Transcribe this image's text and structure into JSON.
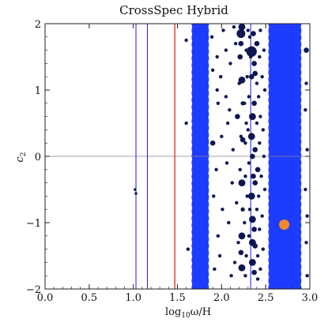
{
  "chart_data": {
    "type": "scatter",
    "title": "CrossSpec Hybrid",
    "xlabel": "log10ω/H",
    "ylabel": "c2",
    "xlim": [
      0.0,
      3.0
    ],
    "ylim": [
      -2,
      2
    ],
    "x_ticks": [
      "0.0",
      "0.5",
      "1.0",
      "1.5",
      "2.0",
      "2.5",
      "3.0"
    ],
    "y_ticks": [
      "2",
      "1",
      "0",
      "−1",
      "−2"
    ],
    "grid": false,
    "colors": {
      "band": "#1e3cff",
      "points": "#0d1650",
      "marker": "#f5892e",
      "vline_blue": "#1a1aff",
      "vline_red": "#e02a10",
      "zero_line": "#888888"
    },
    "reference_lines": {
      "horizontal_y": 0,
      "vertical_blue_x": [
        1.03,
        1.16,
        2.33
      ],
      "vertical_red_x": [
        1.47
      ]
    },
    "bands": [
      {
        "x_min": 1.66,
        "x_max": 1.88
      },
      {
        "x_min": 2.53,
        "x_max": 2.94
      }
    ],
    "highlight_point": {
      "x": 2.71,
      "y": -1.03
    },
    "points": [
      [
        1.02,
        -0.5,
        0.8
      ],
      [
        1.03,
        -0.56,
        0.8
      ],
      [
        1.6,
        1.75,
        1
      ],
      [
        1.62,
        -1.4,
        1
      ],
      [
        1.6,
        0.5,
        1
      ],
      [
        1.89,
        1.8,
        1
      ],
      [
        1.9,
        1.3,
        1
      ],
      [
        1.9,
        0.2,
        1.5
      ],
      [
        1.91,
        -0.6,
        1
      ],
      [
        1.92,
        -1.7,
        1
      ],
      [
        1.95,
        1.5,
        1
      ],
      [
        1.96,
        0.8,
        1
      ],
      [
        1.94,
        -0.2,
        1
      ],
      [
        1.96,
        -1.2,
        1
      ],
      [
        1.95,
        1.0,
        1
      ],
      [
        1.99,
        1.2,
        1
      ],
      [
        2.0,
        0.3,
        1
      ],
      [
        2.01,
        -0.8,
        1
      ],
      [
        1.98,
        -1.5,
        1
      ],
      [
        2.02,
        1.9,
        1
      ],
      [
        2.05,
        0.9,
        1
      ],
      [
        2.06,
        -0.1,
        1
      ],
      [
        2.08,
        -1.0,
        1
      ],
      [
        2.05,
        1.6,
        1
      ],
      [
        2.07,
        0.5,
        1
      ],
      [
        2.1,
        1.4,
        1
      ],
      [
        2.12,
        -0.4,
        1
      ],
      [
        2.11,
        -1.8,
        1
      ],
      [
        2.13,
        0.1,
        1
      ],
      [
        2.09,
        0.7,
        1
      ],
      [
        2.16,
        1.7,
        1
      ],
      [
        2.18,
        0.6,
        1.5
      ],
      [
        2.17,
        -0.7,
        1
      ],
      [
        2.19,
        -1.3,
        1
      ],
      [
        2.2,
        1.1,
        1
      ],
      [
        2.14,
        1.95,
        1
      ],
      [
        2.21,
        -0.2,
        1
      ],
      [
        2.15,
        -1.6,
        1
      ],
      [
        2.22,
        0.3,
        1
      ],
      [
        2.23,
        1.95,
        2
      ],
      [
        2.22,
        1.85,
        2.5
      ],
      [
        2.22,
        1.7,
        1.5
      ],
      [
        2.23,
        1.15,
        2
      ],
      [
        2.24,
        0.25,
        1.5
      ],
      [
        2.23,
        -0.4,
        2
      ],
      [
        2.23,
        -1.2,
        2
      ],
      [
        2.23,
        -1.68,
        2
      ],
      [
        2.24,
        0.8,
        1.2
      ],
      [
        2.24,
        -0.8,
        1.2
      ],
      [
        2.21,
        1.5,
        1.5
      ],
      [
        2.22,
        -1.45,
        1.5
      ],
      [
        2.26,
        0.8,
        1
      ],
      [
        2.27,
        0.2,
        1
      ],
      [
        2.27,
        -0.3,
        1
      ],
      [
        2.26,
        -1.0,
        1
      ],
      [
        2.28,
        1.6,
        1
      ],
      [
        2.28,
        -1.5,
        1
      ],
      [
        2.29,
        1.2,
        1
      ],
      [
        2.29,
        -0.6,
        1
      ],
      [
        2.28,
        0.5,
        1
      ],
      [
        2.27,
        -1.8,
        1
      ],
      [
        2.3,
        1.9,
        1
      ],
      [
        2.31,
        0.9,
        1
      ],
      [
        2.31,
        -0.1,
        1
      ],
      [
        2.31,
        -1.2,
        1
      ],
      [
        2.3,
        0.4,
        1
      ],
      [
        2.32,
        1.8,
        1
      ],
      [
        2.32,
        -0.8,
        1
      ],
      [
        2.33,
        1.5,
        1
      ],
      [
        2.33,
        -1.6,
        1
      ],
      [
        2.34,
        1.58,
        3
      ],
      [
        2.34,
        1.2,
        1.5
      ],
      [
        2.35,
        0.6,
        2
      ],
      [
        2.35,
        0.0,
        1.5
      ],
      [
        2.34,
        -0.6,
        2
      ],
      [
        2.35,
        -0.95,
        2
      ],
      [
        2.35,
        -1.3,
        2
      ],
      [
        2.35,
        -1.6,
        2
      ],
      [
        2.34,
        0.3,
        2
      ],
      [
        2.36,
        -0.3,
        1.5
      ],
      [
        2.37,
        1.4,
        1.5
      ],
      [
        2.37,
        0.8,
        1.5
      ],
      [
        2.37,
        -1.1,
        1.5
      ],
      [
        2.36,
        1.85,
        1.5
      ],
      [
        2.37,
        -1.75,
        1.5
      ],
      [
        2.38,
        1.25,
        1.5
      ],
      [
        2.38,
        0.1,
        1.5
      ],
      [
        2.38,
        -0.4,
        1.5
      ],
      [
        2.38,
        -1.35,
        1.5
      ],
      [
        2.4,
        1.7,
        1.5
      ],
      [
        2.4,
        1.1,
        1
      ],
      [
        2.4,
        0.5,
        1
      ],
      [
        2.41,
        -0.2,
        1.5
      ],
      [
        2.4,
        -0.8,
        1
      ],
      [
        2.41,
        -1.5,
        1
      ],
      [
        2.41,
        -1.85,
        1
      ],
      [
        2.43,
        1.5,
        1
      ],
      [
        2.42,
        0.9,
        1
      ],
      [
        2.43,
        0.2,
        1
      ],
      [
        2.42,
        -0.6,
        1
      ],
      [
        2.43,
        -1.1,
        1
      ],
      [
        2.44,
        1.9,
        1
      ],
      [
        2.44,
        0.6,
        1
      ],
      [
        2.45,
        -0.3,
        1
      ],
      [
        2.44,
        -1.7,
        1
      ],
      [
        2.46,
        1.2,
        1
      ],
      [
        2.46,
        -0.9,
        1
      ],
      [
        2.47,
        0.4,
        1
      ],
      [
        2.47,
        -1.4,
        1
      ],
      [
        2.48,
        1.6,
        1
      ],
      [
        2.48,
        0.0,
        1
      ],
      [
        2.49,
        -0.5,
        1
      ],
      [
        2.49,
        1.0,
        1
      ],
      [
        2.96,
        1.6,
        1.5
      ],
      [
        2.95,
        0.7,
        1
      ],
      [
        2.97,
        0.1,
        1
      ],
      [
        2.95,
        -0.5,
        1
      ],
      [
        2.96,
        -1.3,
        1
      ],
      [
        2.97,
        -1.8,
        1
      ],
      [
        2.96,
        1.1,
        1
      ],
      [
        2.97,
        -0.9,
        1
      ]
    ]
  }
}
